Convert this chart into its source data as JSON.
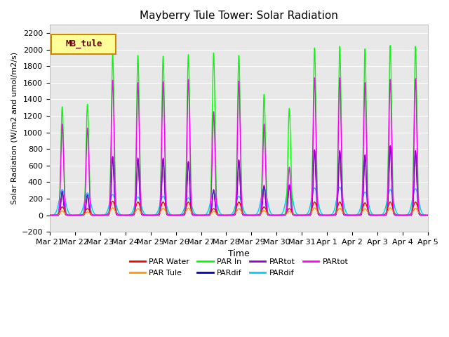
{
  "title": "Mayberry Tule Tower: Solar Radiation",
  "ylabel": "Solar Radiation (W/m2 and umol/m2/s)",
  "xlabel": "Time",
  "ylim": [
    -200,
    2300
  ],
  "yticks": [
    -200,
    0,
    200,
    400,
    600,
    800,
    1000,
    1200,
    1400,
    1600,
    1800,
    2000,
    2200
  ],
  "legend_label": "MB_tule",
  "colors": {
    "PAR Water": "#ff0000",
    "PAR Tule": "#ff9900",
    "PAR In": "#00ff00",
    "PARdif_blue": "#0000cc",
    "PARtot_purple": "#9900cc",
    "PARdif_cyan": "#00ccff",
    "PARtot_magenta": "#ff00ff"
  },
  "legend_entries": [
    {
      "label": "PAR Water",
      "color": "#ff0000"
    },
    {
      "label": "PAR Tule",
      "color": "#ff9900"
    },
    {
      "label": "PAR In",
      "color": "#00ff00"
    },
    {
      "label": "PARdif",
      "color": "#0000cc"
    },
    {
      "label": "PARtot",
      "color": "#9900cc"
    },
    {
      "label": "PARdif",
      "color": "#00ccff"
    },
    {
      "label": "PARtot",
      "color": "#ff00ff"
    }
  ],
  "n_days": 15,
  "day_peaks": {
    "PAR In": [
      1310,
      1340,
      1940,
      1930,
      1920,
      1940,
      1960,
      1930,
      1460,
      1290,
      2020,
      2040,
      2010,
      2050,
      2040
    ],
    "PARtot_magenta": [
      1100,
      1050,
      1630,
      1600,
      1610,
      1640,
      1250,
      1620,
      1100,
      580,
      1660,
      1660,
      1600,
      1640,
      1650
    ],
    "PAR Water": [
      100,
      80,
      170,
      160,
      160,
      160,
      80,
      160,
      100,
      80,
      160,
      160,
      150,
      160,
      160
    ],
    "PAR Tule": [
      50,
      40,
      90,
      80,
      85,
      85,
      45,
      80,
      55,
      45,
      90,
      85,
      80,
      90,
      85
    ],
    "PARdif_blue": [
      280,
      240,
      700,
      680,
      680,
      640,
      300,
      660,
      350,
      350,
      780,
      770,
      720,
      830,
      770
    ],
    "PARtot_purple": [
      290,
      250,
      710,
      690,
      690,
      650,
      310,
      670,
      360,
      360,
      790,
      780,
      730,
      840,
      780
    ],
    "PARdif_cyan": [
      310,
      270,
      250,
      220,
      230,
      210,
      280,
      230,
      330,
      370,
      330,
      340,
      280,
      310,
      320
    ]
  },
  "background_color": "#e8e8e8",
  "grid_color": "#ffffff",
  "tick_labels": [
    "Mar 21",
    "Mar 22",
    "Mar 23",
    "Mar 24",
    "Mar 25",
    "Mar 26",
    "Mar 27",
    "Mar 28",
    "Mar 29",
    "Mar 30",
    "Mar 31",
    "Apr 1",
    "Apr 2",
    "Apr 3",
    "Apr 4",
    "Apr 5"
  ]
}
